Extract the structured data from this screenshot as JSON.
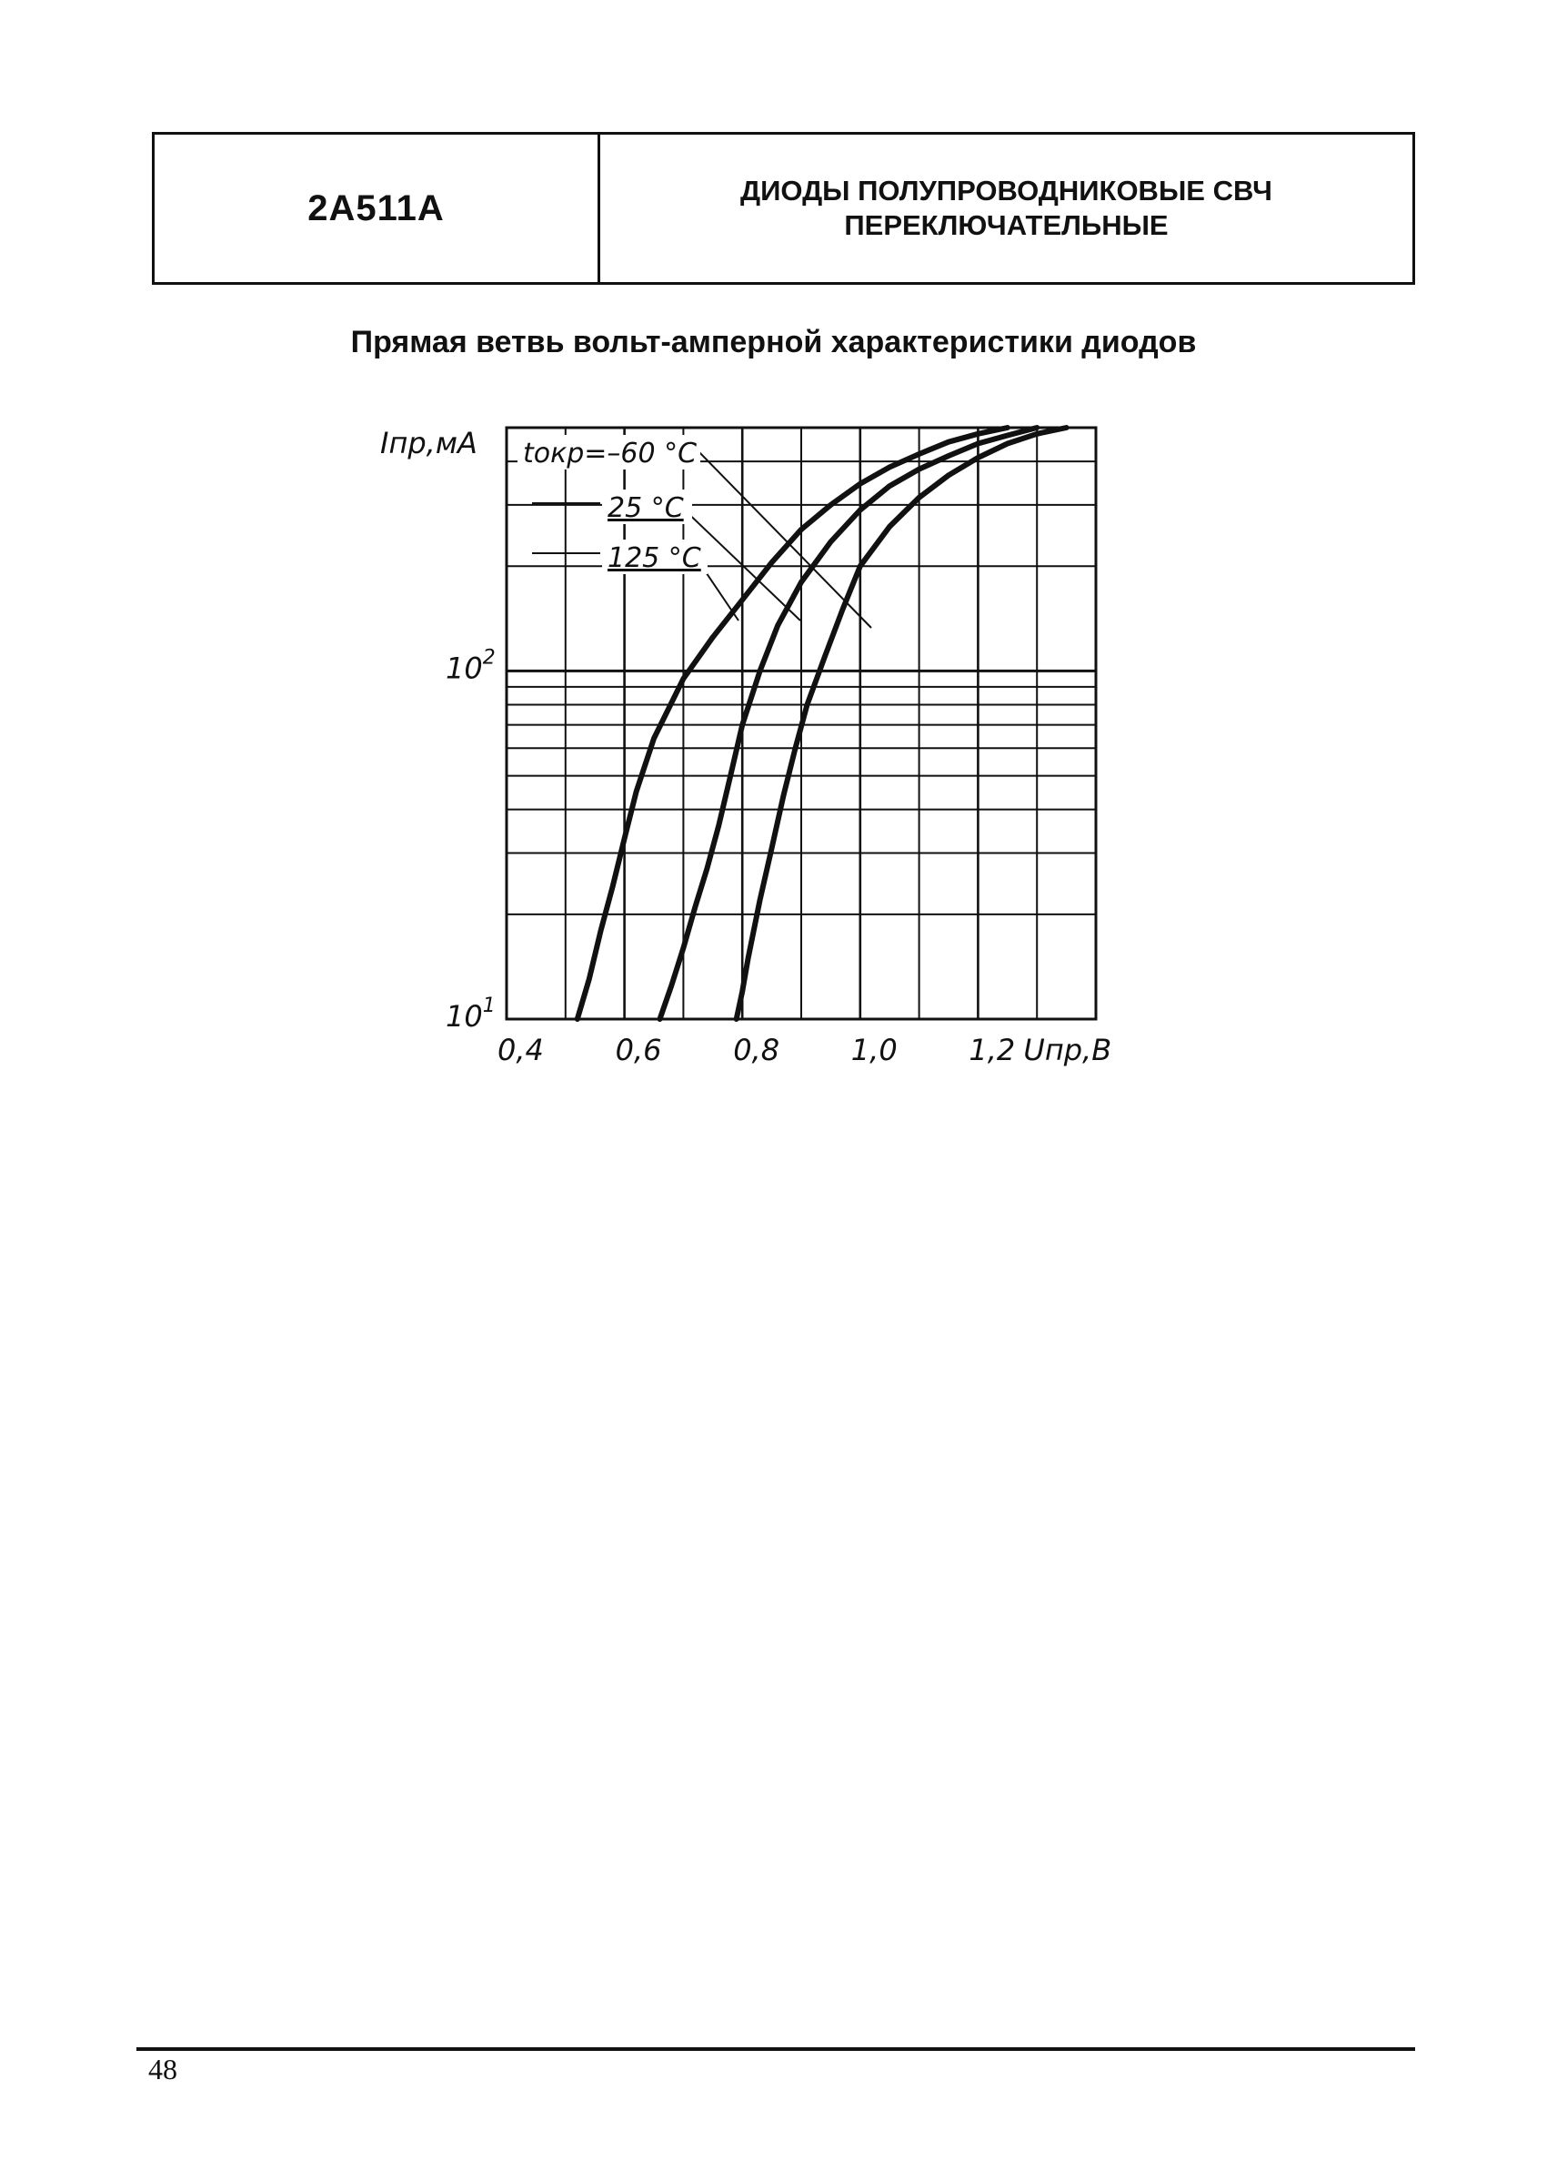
{
  "header": {
    "part_number": "2А511А",
    "title_line1": "ДИОДЫ ПОЛУПРОВОДНИКОВЫЕ СВЧ",
    "title_line2": "ПЕРЕКЛЮЧАТЕЛЬНЫЕ"
  },
  "section_title": "Прямая ветвь вольт-амперной характеристики диодов",
  "chart_data": {
    "type": "line",
    "title": "",
    "xlabel": "Uпр,В",
    "ylabel": "Iпр,мА",
    "xscale": "linear",
    "yscale": "log",
    "xlim": [
      0.4,
      1.4
    ],
    "ylim": [
      10,
      500
    ],
    "grid": true,
    "x_ticks": [
      "0,4",
      "0,6",
      "0,8",
      "1,0",
      "1,2"
    ],
    "y_ticks": [
      {
        "mantissa": "10",
        "exponent": "2",
        "value": 100
      },
      {
        "mantissa": "10",
        "exponent": "1",
        "value": 10
      }
    ],
    "legend_title": "tокр = –60 °C",
    "series": [
      {
        "name": "–60 °C",
        "x": [
          0.52,
          0.54,
          0.56,
          0.58,
          0.6,
          0.62,
          0.65,
          0.7,
          0.75,
          0.8,
          0.85,
          0.9,
          0.95,
          1.0,
          1.05,
          1.1,
          1.15,
          1.2,
          1.25
        ],
        "y": [
          10,
          13,
          18,
          24,
          33,
          45,
          64,
          95,
          125,
          160,
          205,
          255,
          300,
          345,
          385,
          420,
          455,
          480,
          500
        ]
      },
      {
        "name": "25 °C",
        "x": [
          0.66,
          0.68,
          0.7,
          0.72,
          0.74,
          0.76,
          0.78,
          0.8,
          0.83,
          0.86,
          0.9,
          0.95,
          1.0,
          1.05,
          1.1,
          1.15,
          1.2,
          1.25,
          1.3
        ],
        "y": [
          10,
          12.5,
          16,
          21,
          27,
          36,
          50,
          70,
          100,
          135,
          180,
          235,
          290,
          340,
          380,
          415,
          450,
          475,
          500
        ]
      },
      {
        "name": "125 °C",
        "x": [
          0.79,
          0.8,
          0.81,
          0.83,
          0.85,
          0.87,
          0.89,
          0.91,
          0.94,
          0.97,
          1.0,
          1.05,
          1.1,
          1.15,
          1.2,
          1.25,
          1.3,
          1.35
        ],
        "y": [
          10,
          12,
          15,
          22,
          31,
          44,
          60,
          80,
          110,
          150,
          200,
          260,
          315,
          365,
          410,
          450,
          480,
          500
        ]
      }
    ],
    "curve_labels": [
      "tокр=–60 °C",
      "25 °C",
      "125 °C"
    ]
  },
  "footer": {
    "page_number": "48"
  }
}
